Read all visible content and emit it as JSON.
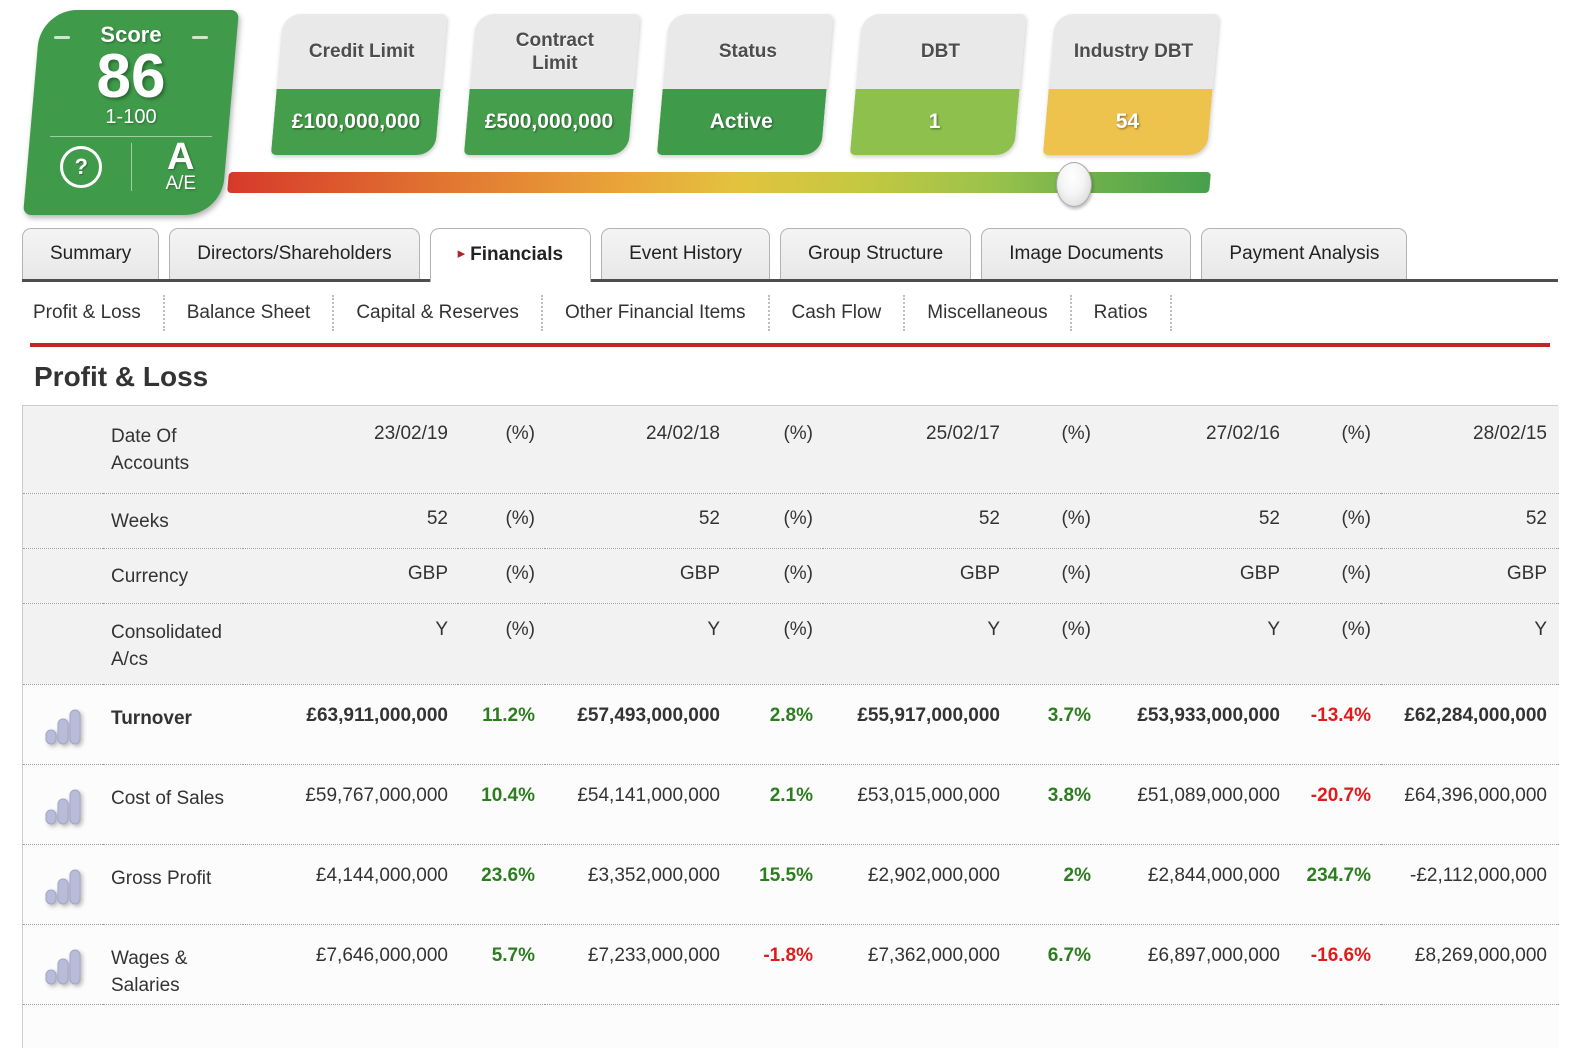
{
  "scorecard": {
    "title": "Score",
    "score": "86",
    "range": "1-100",
    "help": "?",
    "grade": "A",
    "grade_scale": "A/E",
    "card_color": "#3f9b4a"
  },
  "metric_pills": [
    {
      "label": "Credit Limit",
      "value": "£100,000,000",
      "value_bg": "#459e4b"
    },
    {
      "label": "Contract Limit",
      "value": "£500,000,000",
      "value_bg": "#459e4b"
    },
    {
      "label": "Status",
      "value": "Active",
      "value_bg": "#3f9b4a"
    },
    {
      "label": "DBT",
      "value": "1",
      "value_bg": "#8dc04d"
    },
    {
      "label": "Industry DBT",
      "value": "54",
      "value_bg": "#edc24d"
    }
  ],
  "score_slider": {
    "pct": 86,
    "gradient_start": "#d7392b",
    "gradient_end": "#47a04d"
  },
  "tabs": [
    {
      "label": "Summary",
      "active": false
    },
    {
      "label": "Directors/Shareholders",
      "active": false
    },
    {
      "label": "Financials",
      "active": true
    },
    {
      "label": "Event History",
      "active": false
    },
    {
      "label": "Group Structure",
      "active": false
    },
    {
      "label": "Image Documents",
      "active": false
    },
    {
      "label": "Payment Analysis",
      "active": false
    }
  ],
  "subtabs": [
    "Profit & Loss",
    "Balance Sheet",
    "Capital & Reserves",
    "Other Financial Items",
    "Cash Flow",
    "Miscellaneous",
    "Ratios"
  ],
  "section": {
    "title": "Profit & Loss"
  },
  "financial_table": {
    "colors": {
      "pos": "#2c7d1f",
      "neg": "#e01b1b"
    },
    "meta_rows": [
      {
        "label": "Date Of Accounts",
        "h": "tall",
        "cells": [
          "23/02/19",
          "(%)",
          "24/02/18",
          "(%)",
          "25/02/17",
          "(%)",
          "27/02/16",
          "(%)",
          "28/02/15"
        ]
      },
      {
        "label": "Weeks",
        "h": "short",
        "cells": [
          "52",
          "(%)",
          "52",
          "(%)",
          "52",
          "(%)",
          "52",
          "(%)",
          "52"
        ]
      },
      {
        "label": "Currency",
        "h": "short",
        "cells": [
          "GBP",
          "(%)",
          "GBP",
          "(%)",
          "GBP",
          "(%)",
          "GBP",
          "(%)",
          "GBP"
        ]
      },
      {
        "label": "Consolidated A/cs",
        "h": "mid",
        "cells": [
          "Y",
          "(%)",
          "Y",
          "(%)",
          "Y",
          "(%)",
          "Y",
          "(%)",
          "Y"
        ]
      }
    ],
    "data_rows": [
      {
        "label": "Turnover",
        "bold": true,
        "cells": [
          {
            "v": "£63,911,000,000"
          },
          {
            "v": "11.2%",
            "trend": "pos"
          },
          {
            "v": "£57,493,000,000"
          },
          {
            "v": "2.8%",
            "trend": "pos"
          },
          {
            "v": "£55,917,000,000"
          },
          {
            "v": "3.7%",
            "trend": "pos"
          },
          {
            "v": "£53,933,000,000"
          },
          {
            "v": "-13.4%",
            "trend": "neg"
          },
          {
            "v": "£62,284,000,000"
          }
        ]
      },
      {
        "label": "Cost of Sales",
        "bold": false,
        "cells": [
          {
            "v": "£59,767,000,000"
          },
          {
            "v": "10.4%",
            "trend": "pos"
          },
          {
            "v": "£54,141,000,000"
          },
          {
            "v": "2.1%",
            "trend": "pos"
          },
          {
            "v": "£53,015,000,000"
          },
          {
            "v": "3.8%",
            "trend": "pos"
          },
          {
            "v": "£51,089,000,000"
          },
          {
            "v": "-20.7%",
            "trend": "neg"
          },
          {
            "v": "£64,396,000,000"
          }
        ]
      },
      {
        "label": "Gross Profit",
        "bold": false,
        "cells": [
          {
            "v": "£4,144,000,000"
          },
          {
            "v": "23.6%",
            "trend": "pos"
          },
          {
            "v": "£3,352,000,000"
          },
          {
            "v": "15.5%",
            "trend": "pos"
          },
          {
            "v": "£2,902,000,000"
          },
          {
            "v": "2%",
            "trend": "pos"
          },
          {
            "v": "£2,844,000,000"
          },
          {
            "v": "234.7%",
            "trend": "pos"
          },
          {
            "v": "-£2,112,000,000"
          }
        ]
      },
      {
        "label": "Wages & Salaries",
        "bold": false,
        "cells": [
          {
            "v": "£7,646,000,000"
          },
          {
            "v": "5.7%",
            "trend": "pos"
          },
          {
            "v": "£7,233,000,000"
          },
          {
            "v": "-1.8%",
            "trend": "neg"
          },
          {
            "v": "£7,362,000,000"
          },
          {
            "v": "6.7%",
            "trend": "pos"
          },
          {
            "v": "£6,897,000,000"
          },
          {
            "v": "-16.6%",
            "trend": "neg"
          },
          {
            "v": "£8,269,000,000"
          }
        ]
      }
    ]
  }
}
